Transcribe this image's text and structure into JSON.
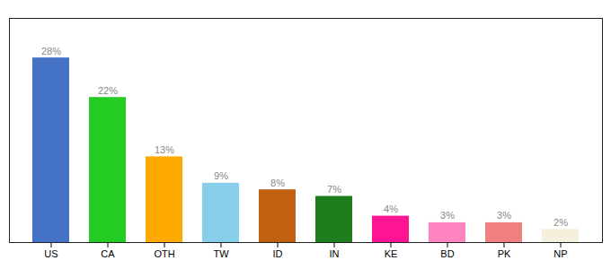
{
  "chart_data": {
    "type": "bar",
    "categories": [
      "US",
      "CA",
      "OTH",
      "TW",
      "ID",
      "IN",
      "KE",
      "BD",
      "PK",
      "NP"
    ],
    "values": [
      28,
      22,
      13,
      9,
      8,
      7,
      4,
      3,
      3,
      2
    ],
    "colors": [
      "#4472c4",
      "#22cc22",
      "#ffaa00",
      "#87ceeb",
      "#c06010",
      "#1e7e1e",
      "#ff1493",
      "#ff85c0",
      "#f08080",
      "#f5f0dc"
    ],
    "data_labels": true,
    "value_labels": [
      "28%",
      "22%",
      "13%",
      "9%",
      "8%",
      "7%",
      "4%",
      "3%",
      "3%",
      "2%"
    ],
    "ylim": [
      0,
      34
    ],
    "yticks": [],
    "tick_labels": "x",
    "grid": false
  }
}
